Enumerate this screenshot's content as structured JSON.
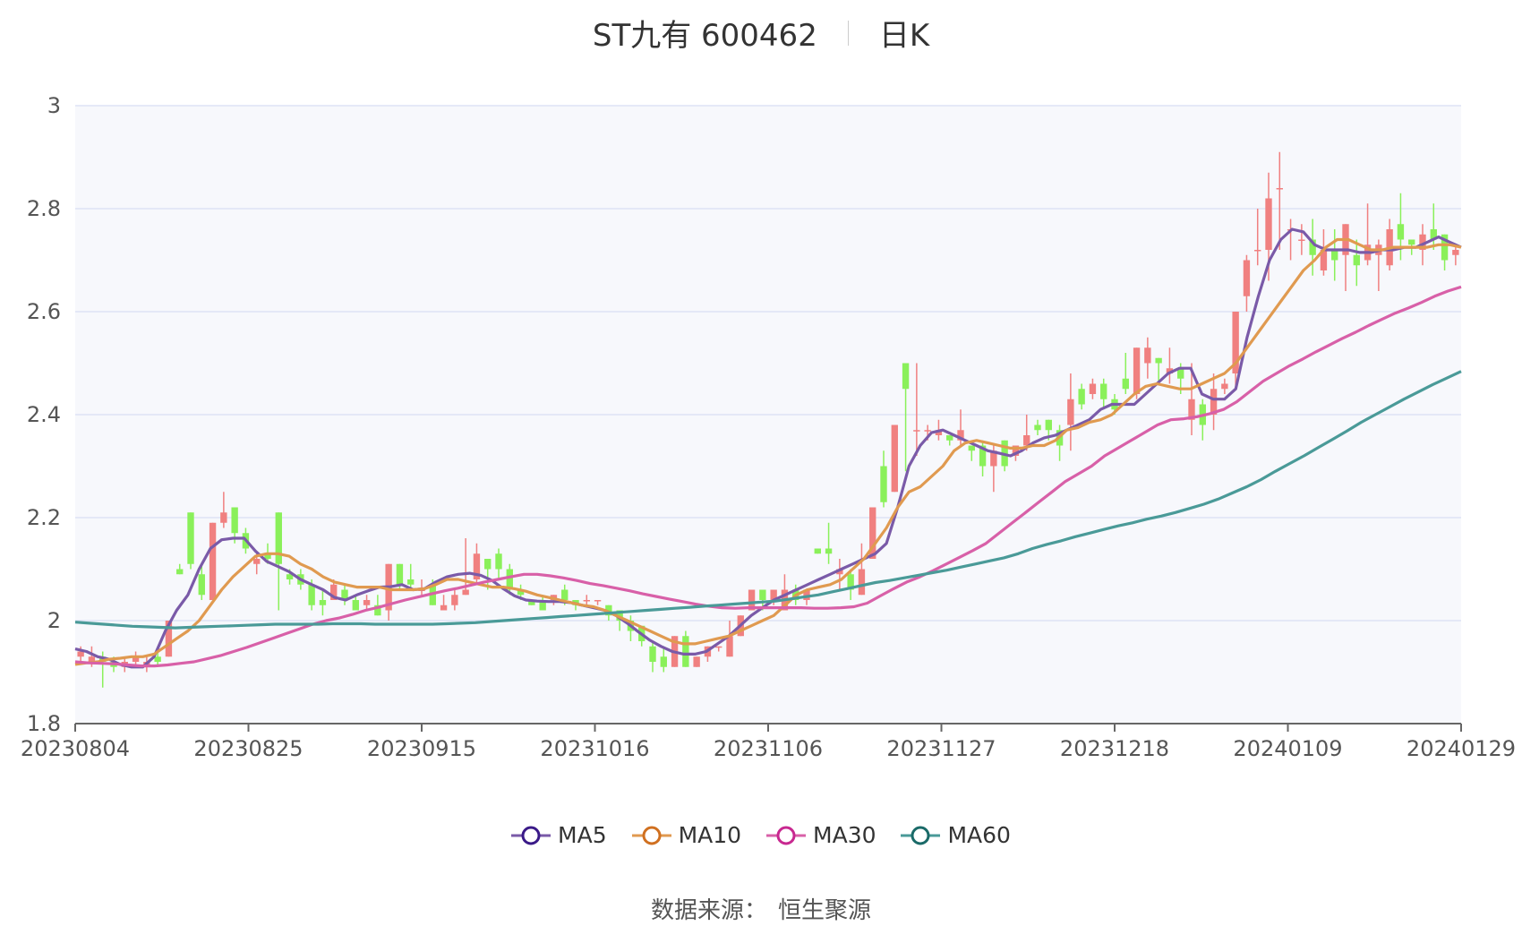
{
  "title": {
    "name": "ST九有 600462",
    "period": "日K"
  },
  "source": {
    "label": "数据来源：",
    "value": "恒生聚源"
  },
  "colors": {
    "up": "#f08080",
    "down": "#8af05a",
    "MA5": "#7a5aa8",
    "MA10": "#e09a50",
    "MA30": "#d860a8",
    "MA60": "#4a9a98",
    "grid": "#dde3f5",
    "plot_bg": "#f7f8fc"
  },
  "chart_data": {
    "type": "candlestick",
    "ylim": [
      1.8,
      3
    ],
    "yticks": [
      "1.8",
      "2",
      "2.2",
      "2.4",
      "2.6",
      "2.8",
      "3"
    ],
    "xticks": [
      "20230804",
      "20230825",
      "20230915",
      "20231016",
      "20231106",
      "20231127",
      "20231218",
      "20240109",
      "20240129"
    ],
    "legend_position": "bottom",
    "grid": true,
    "candles": [
      [
        1.93,
        1.94,
        1.95,
        1.92
      ],
      [
        1.92,
        1.93,
        1.95,
        1.91
      ],
      [
        1.93,
        1.92,
        1.94,
        1.87
      ],
      [
        1.92,
        1.91,
        1.93,
        1.9
      ],
      [
        1.91,
        1.92,
        1.93,
        1.9
      ],
      [
        1.92,
        1.93,
        1.94,
        1.91
      ],
      [
        1.91,
        1.92,
        1.93,
        1.9
      ],
      [
        1.93,
        1.92,
        1.94,
        1.91
      ],
      [
        1.93,
        2.0,
        2.0,
        1.93
      ],
      [
        2.1,
        2.09,
        2.11,
        2.09
      ],
      [
        2.21,
        2.11,
        2.21,
        2.1
      ],
      [
        2.09,
        2.05,
        2.11,
        2.04
      ],
      [
        2.04,
        2.19,
        2.19,
        2.04
      ],
      [
        2.19,
        2.21,
        2.25,
        2.18
      ],
      [
        2.22,
        2.17,
        2.22,
        2.15
      ],
      [
        2.17,
        2.14,
        2.18,
        2.13
      ],
      [
        2.11,
        2.12,
        2.13,
        2.09
      ],
      [
        2.13,
        2.12,
        2.15,
        2.11
      ],
      [
        2.21,
        2.11,
        2.21,
        2.02
      ],
      [
        2.09,
        2.08,
        2.1,
        2.07
      ],
      [
        2.09,
        2.07,
        2.1,
        2.06
      ],
      [
        2.07,
        2.03,
        2.08,
        2.02
      ],
      [
        2.04,
        2.03,
        2.06,
        2.01
      ],
      [
        2.04,
        2.07,
        2.08,
        2.04
      ],
      [
        2.06,
        2.04,
        2.07,
        2.03
      ],
      [
        2.04,
        2.02,
        2.05,
        2.02
      ],
      [
        2.03,
        2.04,
        2.05,
        2.02
      ],
      [
        2.03,
        2.01,
        2.05,
        2.01
      ],
      [
        2.02,
        2.11,
        2.11,
        2.0
      ],
      [
        2.11,
        2.07,
        2.11,
        2.06
      ],
      [
        2.08,
        2.07,
        2.11,
        2.06
      ],
      [
        2.06,
        2.06,
        2.08,
        2.05
      ],
      [
        2.07,
        2.03,
        2.08,
        2.03
      ],
      [
        2.02,
        2.03,
        2.05,
        2.02
      ],
      [
        2.03,
        2.05,
        2.06,
        2.02
      ],
      [
        2.05,
        2.06,
        2.16,
        2.05
      ],
      [
        2.08,
        2.13,
        2.15,
        2.07
      ],
      [
        2.12,
        2.1,
        2.12,
        2.06
      ],
      [
        2.13,
        2.1,
        2.14,
        2.08
      ],
      [
        2.1,
        2.06,
        2.11,
        2.05
      ],
      [
        2.06,
        2.05,
        2.07,
        2.04
      ],
      [
        2.04,
        2.03,
        2.04,
        2.03
      ],
      [
        2.04,
        2.02,
        2.05,
        2.02
      ],
      [
        2.04,
        2.05,
        2.05,
        2.03
      ],
      [
        2.06,
        2.04,
        2.07,
        2.03
      ],
      [
        2.04,
        2.03,
        2.04,
        2.02
      ],
      [
        2.04,
        2.04,
        2.05,
        2.03
      ],
      [
        2.04,
        2.04,
        2.04,
        2.03
      ],
      [
        2.03,
        2.01,
        2.03,
        2.0
      ],
      [
        2.02,
        2.0,
        2.02,
        1.98
      ],
      [
        2.0,
        1.98,
        2.01,
        1.96
      ],
      [
        1.99,
        1.96,
        1.99,
        1.95
      ],
      [
        1.95,
        1.92,
        1.96,
        1.9
      ],
      [
        1.93,
        1.91,
        1.95,
        1.9
      ],
      [
        1.91,
        1.97,
        1.97,
        1.91
      ],
      [
        1.97,
        1.91,
        1.98,
        1.91
      ],
      [
        1.91,
        1.93,
        1.93,
        1.91
      ],
      [
        1.93,
        1.95,
        1.95,
        1.92
      ],
      [
        1.95,
        1.95,
        1.95,
        1.94
      ],
      [
        1.93,
        1.97,
        2.0,
        1.93
      ],
      [
        1.97,
        2.01,
        2.01,
        1.97
      ],
      [
        2.02,
        2.06,
        2.06,
        2.02
      ],
      [
        2.06,
        2.04,
        2.06,
        2.02
      ],
      [
        2.04,
        2.06,
        2.06,
        2.03
      ],
      [
        2.02,
        2.06,
        2.09,
        2.02
      ],
      [
        2.06,
        2.04,
        2.07,
        2.03
      ],
      [
        2.04,
        2.06,
        2.06,
        2.03
      ],
      [
        2.14,
        2.13,
        2.14,
        2.13
      ],
      [
        2.14,
        2.13,
        2.19,
        2.11
      ],
      [
        2.09,
        2.1,
        2.12,
        2.06
      ],
      [
        2.09,
        2.06,
        2.1,
        2.04
      ],
      [
        2.05,
        2.1,
        2.15,
        2.05
      ],
      [
        2.12,
        2.22,
        2.22,
        2.12
      ],
      [
        2.3,
        2.23,
        2.33,
        2.22
      ],
      [
        2.25,
        2.38,
        2.38,
        2.25
      ],
      [
        2.5,
        2.45,
        2.5,
        2.29
      ],
      [
        2.37,
        2.37,
        2.5,
        2.32
      ],
      [
        2.37,
        2.37,
        2.38,
        2.35
      ],
      [
        2.36,
        2.37,
        2.39,
        2.35
      ],
      [
        2.36,
        2.35,
        2.36,
        2.34
      ],
      [
        2.35,
        2.37,
        2.41,
        2.34
      ],
      [
        2.34,
        2.33,
        2.34,
        2.31
      ],
      [
        2.34,
        2.3,
        2.35,
        2.28
      ],
      [
        2.3,
        2.33,
        2.34,
        2.25
      ],
      [
        2.35,
        2.3,
        2.35,
        2.29
      ],
      [
        2.32,
        2.34,
        2.34,
        2.31
      ],
      [
        2.34,
        2.36,
        2.4,
        2.33
      ],
      [
        2.38,
        2.37,
        2.39,
        2.36
      ],
      [
        2.39,
        2.37,
        2.39,
        2.35
      ],
      [
        2.37,
        2.34,
        2.38,
        2.31
      ],
      [
        2.38,
        2.43,
        2.48,
        2.33
      ],
      [
        2.45,
        2.42,
        2.46,
        2.41
      ],
      [
        2.44,
        2.46,
        2.47,
        2.43
      ],
      [
        2.46,
        2.43,
        2.47,
        2.41
      ],
      [
        2.43,
        2.41,
        2.44,
        2.4
      ],
      [
        2.47,
        2.45,
        2.52,
        2.44
      ],
      [
        2.44,
        2.53,
        2.53,
        2.43
      ],
      [
        2.5,
        2.53,
        2.55,
        2.47
      ],
      [
        2.51,
        2.5,
        2.51,
        2.46
      ],
      [
        2.48,
        2.49,
        2.53,
        2.46
      ],
      [
        2.49,
        2.47,
        2.5,
        2.44
      ],
      [
        2.39,
        2.43,
        2.5,
        2.36
      ],
      [
        2.42,
        2.38,
        2.43,
        2.35
      ],
      [
        2.4,
        2.45,
        2.48,
        2.37
      ],
      [
        2.45,
        2.46,
        2.47,
        2.44
      ],
      [
        2.48,
        2.6,
        2.6,
        2.45
      ],
      [
        2.63,
        2.7,
        2.71,
        2.6
      ],
      [
        2.72,
        2.72,
        2.8,
        2.69
      ],
      [
        2.72,
        2.82,
        2.87,
        2.66
      ],
      [
        2.84,
        2.84,
        2.91,
        2.72
      ],
      [
        2.76,
        2.76,
        2.78,
        2.7
      ],
      [
        2.74,
        2.74,
        2.77,
        2.71
      ],
      [
        2.74,
        2.71,
        2.78,
        2.67
      ],
      [
        2.68,
        2.72,
        2.76,
        2.67
      ],
      [
        2.72,
        2.7,
        2.76,
        2.66
      ],
      [
        2.71,
        2.77,
        2.77,
        2.64
      ],
      [
        2.71,
        2.69,
        2.74,
        2.65
      ],
      [
        2.7,
        2.73,
        2.81,
        2.69
      ],
      [
        2.71,
        2.73,
        2.74,
        2.64
      ],
      [
        2.69,
        2.76,
        2.78,
        2.68
      ],
      [
        2.77,
        2.74,
        2.83,
        2.7
      ],
      [
        2.74,
        2.73,
        2.74,
        2.71
      ],
      [
        2.72,
        2.75,
        2.77,
        2.69
      ],
      [
        2.76,
        2.74,
        2.81,
        2.72
      ],
      [
        2.75,
        2.7,
        2.75,
        2.68
      ],
      [
        2.71,
        2.72,
        2.73,
        2.69
      ]
    ],
    "series": [
      {
        "name": "MA5",
        "values": [
          1.945,
          1.94,
          1.93,
          1.925,
          1.915,
          1.91,
          1.91,
          1.93,
          1.98,
          2.02,
          2.05,
          2.1,
          2.14,
          2.157,
          2.16,
          2.16,
          2.135,
          2.115,
          2.105,
          2.095,
          2.08,
          2.07,
          2.06,
          2.045,
          2.04,
          2.05,
          2.058,
          2.065,
          2.066,
          2.07,
          2.06,
          2.062,
          2.075,
          2.085,
          2.09,
          2.092,
          2.088,
          2.078,
          2.062,
          2.048,
          2.04,
          2.038,
          2.037,
          2.037,
          2.035,
          2.03,
          2.025,
          2.02,
          2.01,
          1.995,
          1.978,
          1.962,
          1.95,
          1.94,
          1.935,
          1.935,
          1.94,
          1.955,
          1.97,
          1.99,
          2.01,
          2.025,
          2.04,
          2.05,
          2.06,
          2.07,
          2.08,
          2.09,
          2.1,
          2.11,
          2.12,
          2.13,
          2.15,
          2.22,
          2.3,
          2.34,
          2.365,
          2.37,
          2.36,
          2.35,
          2.34,
          2.33,
          2.325,
          2.32,
          2.33,
          2.345,
          2.355,
          2.36,
          2.37,
          2.38,
          2.39,
          2.41,
          2.42,
          2.42,
          2.42,
          2.44,
          2.46,
          2.48,
          2.49,
          2.49,
          2.44,
          2.43,
          2.43,
          2.45,
          2.55,
          2.63,
          2.7,
          2.74,
          2.76,
          2.755,
          2.73,
          2.72,
          2.72,
          2.72,
          2.715,
          2.715,
          2.72,
          2.72,
          2.725,
          2.725,
          2.735,
          2.745,
          2.735,
          2.725
        ]
      },
      {
        "name": "MA10",
        "values": [
          1.915,
          1.918,
          1.92,
          1.925,
          1.927,
          1.93,
          1.93,
          1.935,
          1.95,
          1.965,
          1.98,
          2.0,
          2.03,
          2.06,
          2.085,
          2.105,
          2.125,
          2.13,
          2.13,
          2.125,
          2.11,
          2.1,
          2.085,
          2.075,
          2.07,
          2.065,
          2.065,
          2.065,
          2.06,
          2.06,
          2.06,
          2.062,
          2.07,
          2.08,
          2.08,
          2.075,
          2.07,
          2.065,
          2.065,
          2.062,
          2.057,
          2.05,
          2.045,
          2.04,
          2.035,
          2.03,
          2.027,
          2.02,
          2.01,
          2.0,
          1.99,
          1.98,
          1.97,
          1.96,
          1.955,
          1.955,
          1.96,
          1.965,
          1.97,
          1.98,
          1.99,
          2.0,
          2.01,
          2.03,
          2.05,
          2.06,
          2.065,
          2.07,
          2.08,
          2.1,
          2.12,
          2.15,
          2.18,
          2.22,
          2.25,
          2.26,
          2.28,
          2.3,
          2.33,
          2.345,
          2.35,
          2.345,
          2.34,
          2.335,
          2.335,
          2.34,
          2.34,
          2.35,
          2.37,
          2.375,
          2.385,
          2.39,
          2.4,
          2.42,
          2.44,
          2.455,
          2.46,
          2.455,
          2.45,
          2.45,
          2.46,
          2.47,
          2.48,
          2.5,
          2.53,
          2.56,
          2.59,
          2.62,
          2.65,
          2.68,
          2.7,
          2.725,
          2.74,
          2.74,
          2.73,
          2.72,
          2.72,
          2.725,
          2.725,
          2.725,
          2.725,
          2.73,
          2.73,
          2.725
        ]
      },
      {
        "name": "MA30",
        "values": [
          1.92,
          1.918,
          1.917,
          1.916,
          1.914,
          1.912,
          1.912,
          1.914,
          1.917,
          1.92,
          1.926,
          1.932,
          1.94,
          1.948,
          1.957,
          1.966,
          1.975,
          1.984,
          1.993,
          2.0,
          2.005,
          2.012,
          2.02,
          2.026,
          2.033,
          2.04,
          2.046,
          2.052,
          2.058,
          2.063,
          2.069,
          2.075,
          2.08,
          2.085,
          2.09,
          2.09,
          2.087,
          2.083,
          2.078,
          2.072,
          2.068,
          2.063,
          2.058,
          2.052,
          2.047,
          2.042,
          2.037,
          2.032,
          2.028,
          2.025,
          2.024,
          2.025,
          2.025,
          2.025,
          2.025,
          2.025,
          2.024,
          2.024,
          2.025,
          2.027,
          2.034,
          2.048,
          2.062,
          2.075,
          2.085,
          2.097,
          2.11,
          2.123,
          2.136,
          2.15,
          2.17,
          2.19,
          2.21,
          2.23,
          2.25,
          2.27,
          2.285,
          2.3,
          2.32,
          2.335,
          2.35,
          2.365,
          2.38,
          2.39,
          2.392,
          2.396,
          2.402,
          2.41,
          2.425,
          2.445,
          2.465,
          2.48,
          2.495,
          2.508,
          2.522,
          2.535,
          2.548,
          2.56,
          2.573,
          2.585,
          2.597,
          2.607,
          2.618,
          2.63,
          2.64,
          2.648
        ]
      },
      {
        "name": "MA60",
        "values": [
          1.997,
          1.995,
          1.993,
          1.991,
          1.989,
          1.988,
          1.987,
          1.986,
          1.987,
          1.988,
          1.989,
          1.99,
          1.991,
          1.992,
          1.993,
          1.993,
          1.993,
          1.993,
          1.994,
          1.994,
          1.994,
          1.993,
          1.993,
          1.993,
          1.993,
          1.993,
          1.994,
          1.995,
          1.996,
          1.998,
          2.0,
          2.002,
          2.004,
          2.006,
          2.008,
          2.01,
          2.012,
          2.014,
          2.016,
          2.018,
          2.02,
          2.022,
          2.024,
          2.026,
          2.028,
          2.03,
          2.032,
          2.034,
          2.036,
          2.038,
          2.042,
          2.046,
          2.05,
          2.056,
          2.062,
          2.068,
          2.074,
          2.078,
          2.083,
          2.088,
          2.093,
          2.098,
          2.104,
          2.11,
          2.116,
          2.122,
          2.13,
          2.14,
          2.148,
          2.155,
          2.163,
          2.17,
          2.177,
          2.184,
          2.19,
          2.197,
          2.203,
          2.21,
          2.218,
          2.226,
          2.236,
          2.248,
          2.26,
          2.274,
          2.29,
          2.305,
          2.32,
          2.336,
          2.352,
          2.368,
          2.385,
          2.4,
          2.415,
          2.43,
          2.444,
          2.458,
          2.471,
          2.484
        ]
      }
    ]
  }
}
